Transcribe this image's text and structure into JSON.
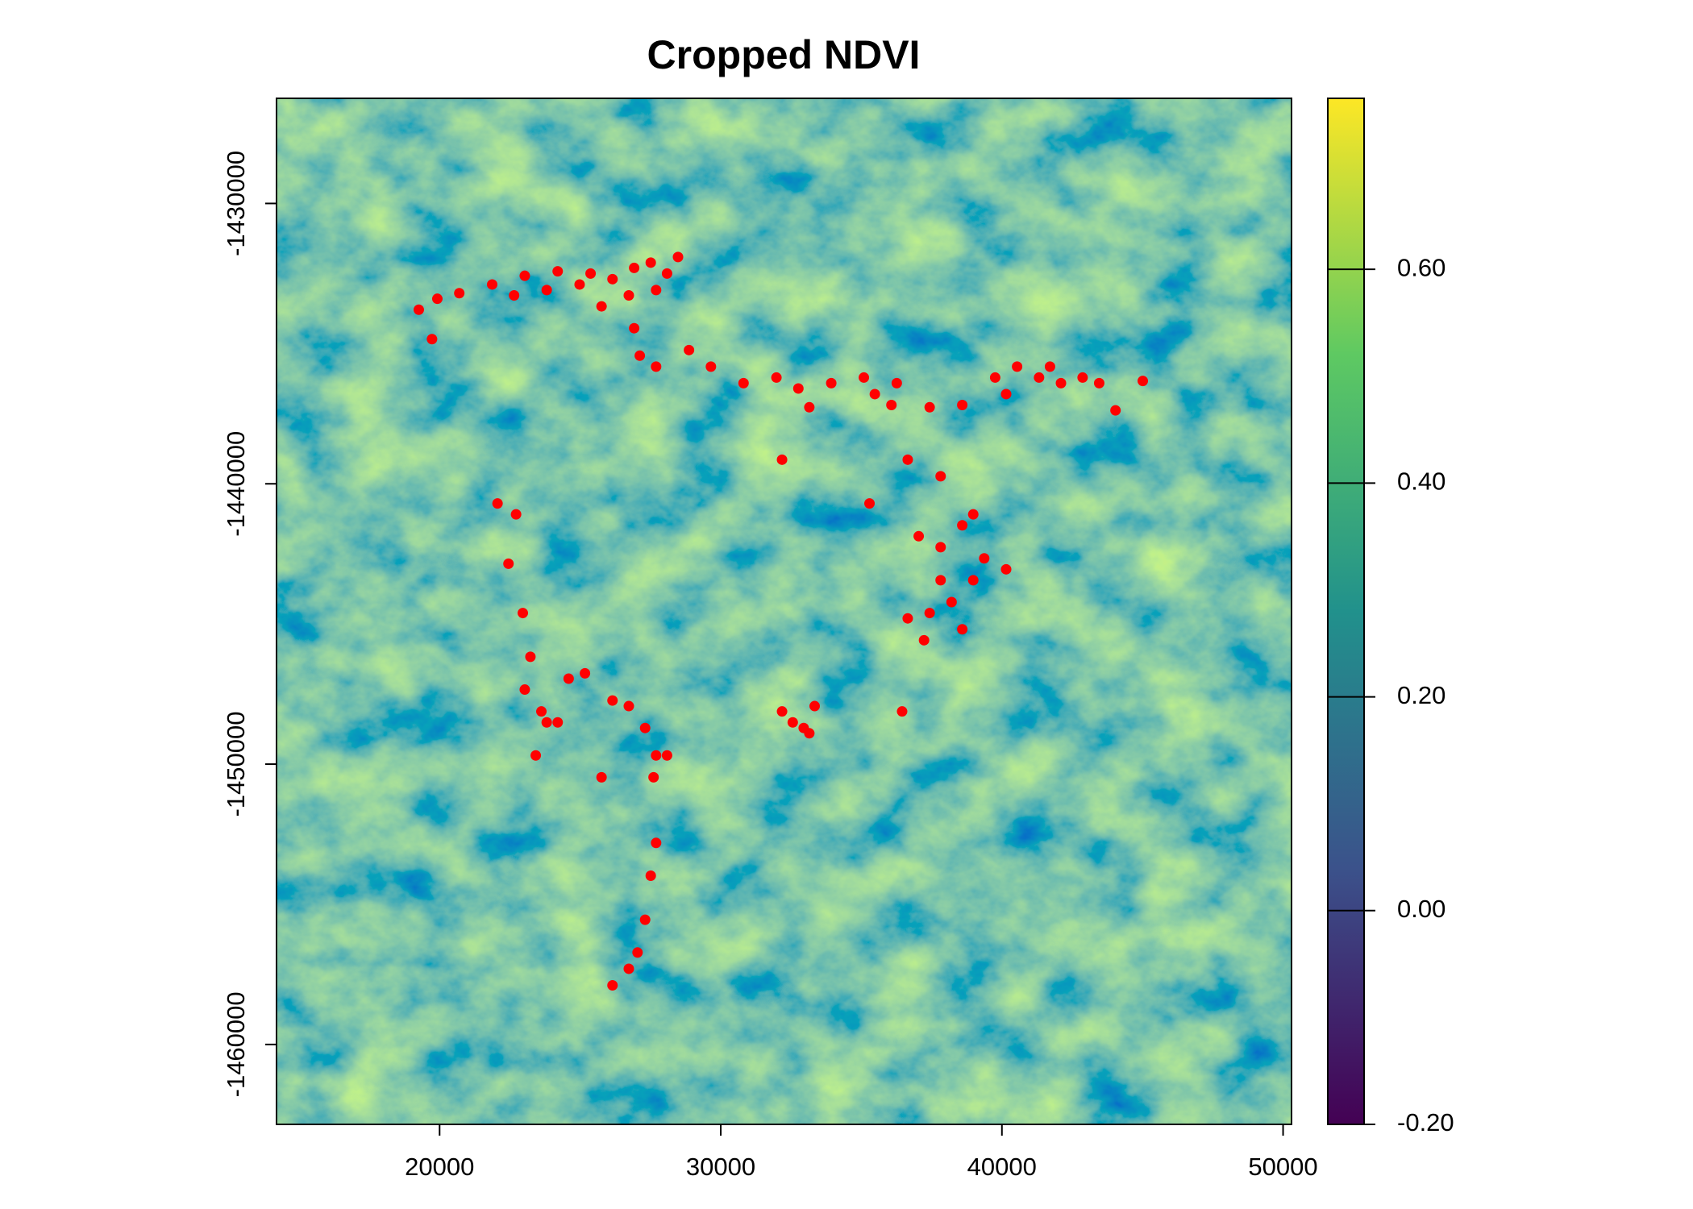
{
  "chart_data": {
    "type": "raster-scatter",
    "title": "Cropped NDVI",
    "xlim": [
      14200,
      50300
    ],
    "ylim": [
      -1462850,
      -1426250
    ],
    "xticks": [
      20000,
      30000,
      40000,
      50000
    ],
    "yticks": [
      -1430000,
      -1440000,
      -1450000,
      -1460000
    ],
    "color": "#ff0000",
    "x": [
      19260,
      19920,
      20700,
      21870,
      23030,
      24200,
      25370,
      26150,
      26920,
      27510,
      28090,
      27700,
      26730,
      25760,
      24980,
      28480,
      26920,
      19730,
      22650,
      23810,
      27120,
      27700,
      28870,
      29650,
      30810,
      31980,
      32760,
      33930,
      35090,
      35480,
      36070,
      36260,
      33150,
      32180,
      35290,
      36650,
      37820,
      37430,
      38590,
      39760,
      40540,
      41320,
      42100,
      42870,
      43460,
      44040,
      45010,
      40150,
      41710,
      37040,
      37820,
      38590,
      39370,
      40150,
      38980,
      38210,
      37820,
      37430,
      36650,
      37230,
      38590,
      38980,
      36450,
      22720,
      22450,
      22960,
      23230,
      23030,
      23620,
      24200,
      24590,
      25170,
      23420,
      23810,
      26150,
      26730,
      27310,
      25760,
      27700,
      28090,
      27610,
      27700,
      27510,
      27310,
      27040,
      26730,
      26150,
      22060,
      32180,
      32560,
      33150,
      33340,
      32950
    ],
    "values": [
      -1433790,
      -1433400,
      -1433200,
      -1432890,
      -1432580,
      -1432420,
      -1432500,
      -1432700,
      -1432300,
      -1432110,
      -1432500,
      -1433090,
      -1433280,
      -1433670,
      -1432890,
      -1431910,
      -1434450,
      -1434840,
      -1433280,
      -1433090,
      -1435430,
      -1435820,
      -1435230,
      -1435820,
      -1436410,
      -1436210,
      -1436600,
      -1436410,
      -1436210,
      -1436800,
      -1437190,
      -1436410,
      -1437270,
      -1439140,
      -1440700,
      -1439140,
      -1439730,
      -1437270,
      -1437190,
      -1436210,
      -1435820,
      -1436210,
      -1436410,
      -1436210,
      -1436410,
      -1437380,
      -1436330,
      -1436800,
      -1435820,
      -1441870,
      -1442260,
      -1441480,
      -1442660,
      -1443050,
      -1443440,
      -1444220,
      -1443440,
      -1444610,
      -1444800,
      -1445580,
      -1445190,
      -1441090,
      -1448120,
      -1441090,
      -1442850,
      -1444610,
      -1446170,
      -1447340,
      -1448120,
      -1448510,
      -1446950,
      -1446760,
      -1449690,
      -1448510,
      -1447730,
      -1447930,
      -1448710,
      -1450470,
      -1449690,
      -1449690,
      -1450470,
      -1452810,
      -1453980,
      -1455550,
      -1456720,
      -1457300,
      -1457890,
      -1440700,
      -1448120,
      -1448510,
      -1448900,
      -1447930,
      -1448710
    ],
    "colorbar": {
      "lim": [
        -0.2,
        0.76
      ],
      "ticks": [
        {
          "value": 0.6,
          "label": "0.60"
        },
        {
          "value": 0.4,
          "label": "0.40"
        },
        {
          "value": 0.2,
          "label": "0.20"
        },
        {
          "value": 0,
          "label": "0.00"
        },
        {
          "value": -0.2,
          "label": "-0.20"
        }
      ],
      "colormap": [
        "#440154",
        "#3b528b",
        "#21918c",
        "#5ec962",
        "#fde725"
      ]
    }
  }
}
